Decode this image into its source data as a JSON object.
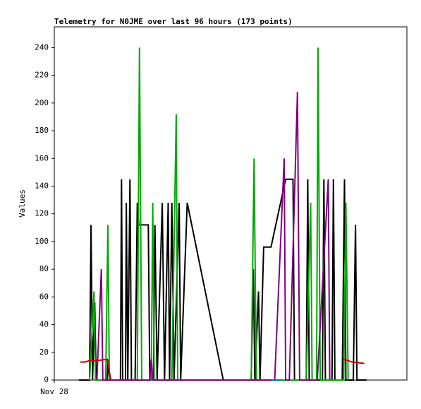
{
  "chart_data": {
    "type": "line",
    "title": "Telemetry for N0JME over last 96 hours (173 points)",
    "y_label": "Values",
    "xlim": [
      0,
      96
    ],
    "xticks": [
      {
        "value": 0,
        "label": "Nov 28"
      }
    ],
    "ylim": [
      0,
      255
    ],
    "yticks": [
      0,
      20,
      40,
      60,
      80,
      100,
      120,
      140,
      160,
      180,
      200,
      220,
      240
    ],
    "series": [
      {
        "color": "#000000",
        "x": [
          6.7,
          9.6,
          10,
          10.4,
          11,
          11.4,
          14.4,
          14.6,
          15,
          18,
          18.3,
          18.6,
          19.4,
          19.6,
          20,
          20.6,
          21,
          22,
          22.6,
          23,
          25.6,
          26,
          27,
          27.4,
          28,
          29.4,
          30,
          31,
          31.4,
          32,
          32.6,
          34,
          34.4,
          36.2,
          46,
          53.6,
          54.2,
          54.6,
          55.6,
          56,
          57,
          59,
          63,
          65,
          65.4,
          68.6,
          69,
          69.4,
          73,
          73.4,
          73.8,
          75.6,
          76,
          76.4,
          78.4,
          79,
          79.4,
          81.4,
          82,
          82.4,
          85
        ],
        "values": [
          0,
          0,
          112,
          0,
          56,
          0,
          0,
          15,
          0,
          0,
          145,
          0,
          0,
          128,
          0,
          145,
          0,
          0,
          128,
          112,
          112,
          0,
          0,
          112,
          0,
          128,
          0,
          128,
          0,
          128,
          0,
          128,
          0,
          128,
          0,
          0,
          80,
          0,
          64,
          0,
          96,
          96,
          145,
          145,
          0,
          0,
          145,
          0,
          0,
          145,
          0,
          0,
          145,
          0,
          0,
          145,
          0,
          0,
          112,
          0,
          0
        ]
      },
      {
        "color": "#00aa00",
        "x": [
          9.6,
          10.8,
          11.2,
          14,
          14.6,
          15,
          22.6,
          23.2,
          23.8,
          26.4,
          26.8,
          27.2,
          32,
          33.2,
          33.6,
          53.6,
          54.4,
          55,
          68.6,
          69.8,
          70.2,
          71.4,
          71.8,
          72.4,
          78.8,
          79.4,
          80
        ],
        "values": [
          0,
          64,
          0,
          0,
          112,
          0,
          0,
          240,
          0,
          0,
          128,
          0,
          0,
          192,
          0,
          0,
          160,
          0,
          0,
          128,
          0,
          0,
          240,
          0,
          0,
          128,
          0
        ]
      },
      {
        "color": "#800080",
        "x": [
          11.6,
          12.8,
          13.2,
          26,
          26.4,
          26.8,
          60,
          62.6,
          63,
          64,
          66.2,
          66.8,
          69,
          71.6,
          74.6,
          75
        ],
        "values": [
          0,
          80,
          0,
          0,
          15,
          0,
          0,
          160,
          0,
          0,
          208,
          0,
          0,
          0,
          145,
          0
        ]
      },
      {
        "color": "#0066cc",
        "x": [
          59,
          62
        ],
        "values": [
          0,
          0
        ]
      },
      {
        "color": "#cc0000",
        "x": [
          7,
          8.4,
          9.6,
          11.6,
          14.4,
          15.4,
          null,
          78.6,
          80,
          81,
          84.4
        ],
        "values": [
          13,
          13,
          14,
          14,
          15,
          0,
          null,
          15,
          14,
          13,
          12
        ]
      }
    ]
  }
}
